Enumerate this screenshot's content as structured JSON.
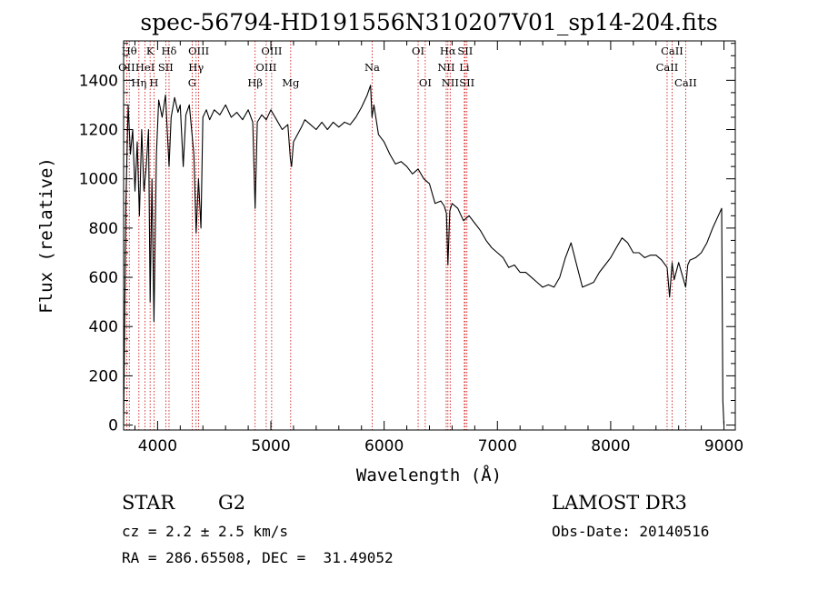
{
  "chart_data": {
    "type": "line",
    "title": "spec-56794-HD191556N310207V01_sp14-204.fits",
    "xlabel": "Wavelength (Å)",
    "ylabel": "Flux (relative)",
    "xlim": [
      3700,
      9100
    ],
    "ylim": [
      -20,
      1560
    ],
    "xticks": [
      4000,
      5000,
      6000,
      7000,
      8000,
      9000
    ],
    "yticks": [
      0,
      200,
      400,
      600,
      800,
      1000,
      1200,
      1400
    ],
    "grid": false,
    "line_color": "#000000",
    "marker_color": "#cc0000",
    "series": [
      {
        "x": [
          3700,
          3720,
          3740,
          3760,
          3780,
          3800,
          3820,
          3840,
          3860,
          3880,
          3900,
          3920,
          3934,
          3950,
          3968,
          3990,
          4010,
          4040,
          4070,
          4101,
          4120,
          4150,
          4180,
          4200,
          4226,
          4250,
          4280,
          4300,
          4320,
          4340,
          4361,
          4383,
          4400,
          4430,
          4460,
          4500,
          4550,
          4600,
          4650,
          4700,
          4750,
          4800,
          4840,
          4861,
          4880,
          4920,
          4960,
          5000,
          5050,
          5100,
          5150,
          5172,
          5183,
          5200,
          5270,
          5300,
          5350,
          5400,
          5450,
          5500,
          5550,
          5600,
          5650,
          5700,
          5750,
          5800,
          5850,
          5880,
          5893,
          5910,
          5950,
          6000,
          6050,
          6100,
          6150,
          6200,
          6250,
          6300,
          6350,
          6400,
          6450,
          6500,
          6530,
          6550,
          6563,
          6580,
          6600,
          6650,
          6700,
          6750,
          6800,
          6850,
          6900,
          6950,
          7000,
          7050,
          7100,
          7150,
          7200,
          7250,
          7300,
          7350,
          7400,
          7450,
          7500,
          7550,
          7600,
          7650,
          7700,
          7750,
          7800,
          7850,
          7900,
          7950,
          8000,
          8050,
          8100,
          8150,
          8200,
          8250,
          8300,
          8350,
          8400,
          8450,
          8498,
          8520,
          8542,
          8560,
          8600,
          8662,
          8680,
          8700,
          8750,
          8800,
          8850,
          8900,
          8950,
          8980,
          8990,
          9000
        ],
        "y": [
          0,
          900,
          1300,
          1100,
          1200,
          950,
          1150,
          850,
          1200,
          950,
          1050,
          1200,
          500,
          1000,
          420,
          1100,
          1320,
          1250,
          1340,
          1050,
          1250,
          1330,
          1270,
          1300,
          1050,
          1260,
          1300,
          1200,
          1100,
          780,
          1000,
          800,
          1250,
          1280,
          1240,
          1280,
          1260,
          1300,
          1250,
          1270,
          1240,
          1280,
          1230,
          880,
          1230,
          1260,
          1240,
          1280,
          1240,
          1200,
          1220,
          1080,
          1050,
          1150,
          1210,
          1240,
          1220,
          1200,
          1230,
          1200,
          1230,
          1210,
          1230,
          1220,
          1250,
          1290,
          1340,
          1380,
          1250,
          1300,
          1180,
          1150,
          1100,
          1060,
          1070,
          1050,
          1020,
          1040,
          1000,
          980,
          900,
          910,
          890,
          860,
          650,
          870,
          900,
          880,
          830,
          850,
          820,
          790,
          750,
          720,
          700,
          680,
          640,
          650,
          620,
          620,
          600,
          580,
          560,
          570,
          560,
          600,
          680,
          740,
          650,
          560,
          570,
          580,
          620,
          650,
          680,
          720,
          760,
          740,
          700,
          700,
          680,
          690,
          690,
          670,
          640,
          520,
          660,
          590,
          660,
          560,
          650,
          670,
          680,
          700,
          740,
          800,
          850,
          880,
          100,
          0
        ]
      }
    ],
    "lines": [
      {
        "name": "OII",
        "x": 3727,
        "row": 1
      },
      {
        "name": "Hθ",
        "x": 3750,
        "row": 0
      },
      {
        "name": "Hη",
        "x": 3835,
        "row": 2
      },
      {
        "name": "HeI",
        "x": 3889,
        "row": 1
      },
      {
        "name": "K",
        "x": 3934,
        "row": 0
      },
      {
        "name": "H",
        "x": 3968,
        "row": 2
      },
      {
        "name": "SII",
        "x": 4072,
        "row": 1
      },
      {
        "name": "Hδ",
        "x": 4101,
        "row": 0
      },
      {
        "name": "G",
        "x": 4305,
        "row": 2
      },
      {
        "name": "Hγ",
        "x": 4340,
        "row": 1
      },
      {
        "name": "OIII",
        "x": 4363,
        "row": 0
      },
      {
        "name": "Hβ",
        "x": 4861,
        "row": 2
      },
      {
        "name": "OIII",
        "x": 4959,
        "row": 1
      },
      {
        "name": "OIII",
        "x": 5007,
        "row": 0
      },
      {
        "name": "Mg",
        "x": 5175,
        "row": 2
      },
      {
        "name": "Na",
        "x": 5894,
        "row": 1
      },
      {
        "name": "OI",
        "x": 6300,
        "row": 0
      },
      {
        "name": "OI",
        "x": 6363,
        "row": 2
      },
      {
        "name": "NII",
        "x": 6548,
        "row": 1
      },
      {
        "name": "Hα",
        "x": 6563,
        "row": 0
      },
      {
        "name": "NII",
        "x": 6583,
        "row": 2
      },
      {
        "name": "Li",
        "x": 6708,
        "row": 1
      },
      {
        "name": "SII",
        "x": 6716,
        "row": 0
      },
      {
        "name": "SII",
        "x": 6731,
        "row": 2
      },
      {
        "name": "CaII",
        "x": 8498,
        "row": 1
      },
      {
        "name": "CaII",
        "x": 8542,
        "row": 0
      },
      {
        "name": "CaII",
        "x": 8662,
        "row": 2
      }
    ]
  },
  "info": {
    "object_class": "STAR",
    "subclass": "G2",
    "survey": "LAMOST DR3",
    "cz": "cz = 2.2 ± 2.5 km/s",
    "obs_date": "Obs-Date: 20140516",
    "coords": "RA = 286.65508, DEC =  31.49052"
  }
}
